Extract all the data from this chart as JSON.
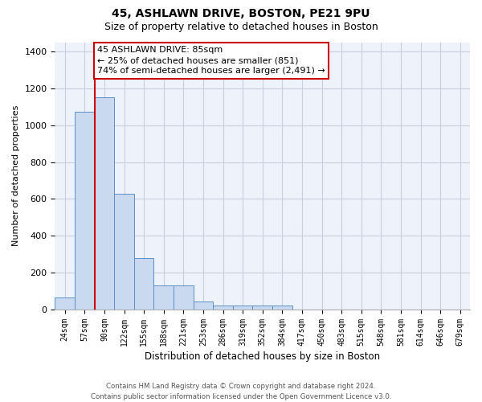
{
  "title": "45, ASHLAWN DRIVE, BOSTON, PE21 9PU",
  "subtitle": "Size of property relative to detached houses in Boston",
  "xlabel": "Distribution of detached houses by size in Boston",
  "ylabel": "Number of detached properties",
  "bar_labels": [
    "24sqm",
    "57sqm",
    "90sqm",
    "122sqm",
    "155sqm",
    "188sqm",
    "221sqm",
    "253sqm",
    "286sqm",
    "319sqm",
    "352sqm",
    "384sqm",
    "417sqm",
    "450sqm",
    "483sqm",
    "515sqm",
    "548sqm",
    "581sqm",
    "614sqm",
    "646sqm",
    "679sqm"
  ],
  "bar_heights": [
    65,
    1075,
    1150,
    630,
    280,
    130,
    130,
    45,
    20,
    20,
    20,
    20,
    0,
    0,
    0,
    0,
    0,
    0,
    0,
    0,
    0
  ],
  "bar_color": "#c9d9f0",
  "bar_edge_color": "#5a8fc4",
  "annotation_line1": "45 ASHLAWN DRIVE: 85sqm",
  "annotation_line2": "← 25% of detached houses are smaller (851)",
  "annotation_line3": "74% of semi-detached houses are larger (2,491) →",
  "annotation_box_color": "#cc0000",
  "ylim": [
    0,
    1450
  ],
  "yticks": [
    0,
    200,
    400,
    600,
    800,
    1000,
    1200,
    1400
  ],
  "grid_color": "#c8d0e0",
  "background_color": "#eef2fa",
  "footer_line1": "Contains HM Land Registry data © Crown copyright and database right 2024.",
  "footer_line2": "Contains public sector information licensed under the Open Government Licence v3.0.",
  "title_fontsize": 10,
  "subtitle_fontsize": 9,
  "bar_width": 1.0,
  "red_line_bar_index": 1.5
}
